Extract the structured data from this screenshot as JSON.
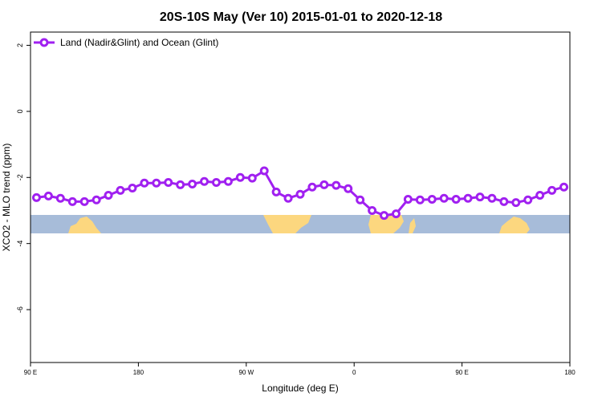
{
  "chart_data": {
    "type": "line",
    "title": "20S-10S May (Ver 10)   2015-01-01 to 2020-12-18",
    "x_label": "Longitude (deg E)",
    "y_label": "XCO2 - MLO trend (ppm)",
    "x": [
      95,
      105,
      115,
      125,
      135,
      145,
      155,
      165,
      175,
      185,
      195,
      205,
      215,
      225,
      235,
      245,
      255,
      265,
      275,
      285,
      295,
      305,
      315,
      325,
      335,
      345,
      355,
      365,
      375,
      385,
      395,
      405,
      415,
      425,
      435,
      445,
      455,
      465,
      475,
      485,
      495,
      505,
      515,
      525,
      535
    ],
    "series": [
      {
        "name": "Land (Nadir&Glint) and Ocean (Glint)",
        "color": "#a020f0",
        "values": [
          -2.61,
          -2.56,
          -2.63,
          -2.73,
          -2.73,
          -2.68,
          -2.54,
          -2.39,
          -2.32,
          -2.17,
          -2.17,
          -2.15,
          -2.22,
          -2.2,
          -2.12,
          -2.15,
          -2.12,
          -2.0,
          -2.02,
          -1.8,
          -2.44,
          -2.63,
          -2.51,
          -2.29,
          -2.22,
          -2.24,
          -2.34,
          -2.68,
          -3.0,
          -3.15,
          -3.1,
          -2.66,
          -2.68,
          -2.66,
          -2.63,
          -2.66,
          -2.63,
          -2.59,
          -2.63,
          -2.73,
          -2.76,
          -2.68,
          -2.54,
          -2.39,
          -2.29
        ]
      }
    ],
    "xlim": [
      90,
      540
    ],
    "xticks": [
      {
        "value": 90,
        "label": "90 E"
      },
      180,
      {
        "value": 270,
        "label": "90 W"
      },
      {
        "value": 360,
        "label": "0"
      },
      {
        "value": 450,
        "label": "90 E"
      },
      {
        "value": 540,
        "label": "180"
      }
    ],
    "ylim": [
      -7.6,
      2.4
    ],
    "yticks": [
      -6,
      -4,
      -2,
      0,
      2
    ],
    "legend": "top-left"
  }
}
